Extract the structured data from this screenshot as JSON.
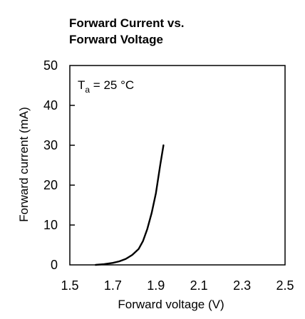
{
  "chart_data": {
    "type": "line",
    "title_lines": [
      "Forward Current vs.",
      "Forward Voltage"
    ],
    "xlabel": "Forward voltage (V)",
    "ylabel": "Forward current (mA)",
    "annotation": {
      "base": "T",
      "sub": "a",
      "rest": " = 25 °C"
    },
    "xlim": [
      1.5,
      2.5
    ],
    "ylim": [
      0,
      50
    ],
    "x_ticks": [
      1.5,
      1.7,
      1.9,
      2.1,
      2.3,
      2.5
    ],
    "x_tick_labels": [
      "1.5",
      "1.7",
      "1.9",
      "2.1",
      "2.3",
      "2.5"
    ],
    "y_ticks": [
      0,
      10,
      20,
      30,
      40,
      50
    ],
    "y_tick_labels": [
      "0",
      "10",
      "20",
      "30",
      "40",
      "50"
    ],
    "grid": false,
    "series": [
      {
        "color": "#000000",
        "points": [
          [
            1.62,
            0.0
          ],
          [
            1.66,
            0.2
          ],
          [
            1.7,
            0.5
          ],
          [
            1.73,
            0.9
          ],
          [
            1.76,
            1.5
          ],
          [
            1.79,
            2.5
          ],
          [
            1.82,
            4.0
          ],
          [
            1.84,
            6.0
          ],
          [
            1.86,
            9.0
          ],
          [
            1.88,
            13.0
          ],
          [
            1.9,
            18.0
          ],
          [
            1.92,
            25.0
          ],
          [
            1.935,
            30.0
          ]
        ]
      }
    ]
  }
}
